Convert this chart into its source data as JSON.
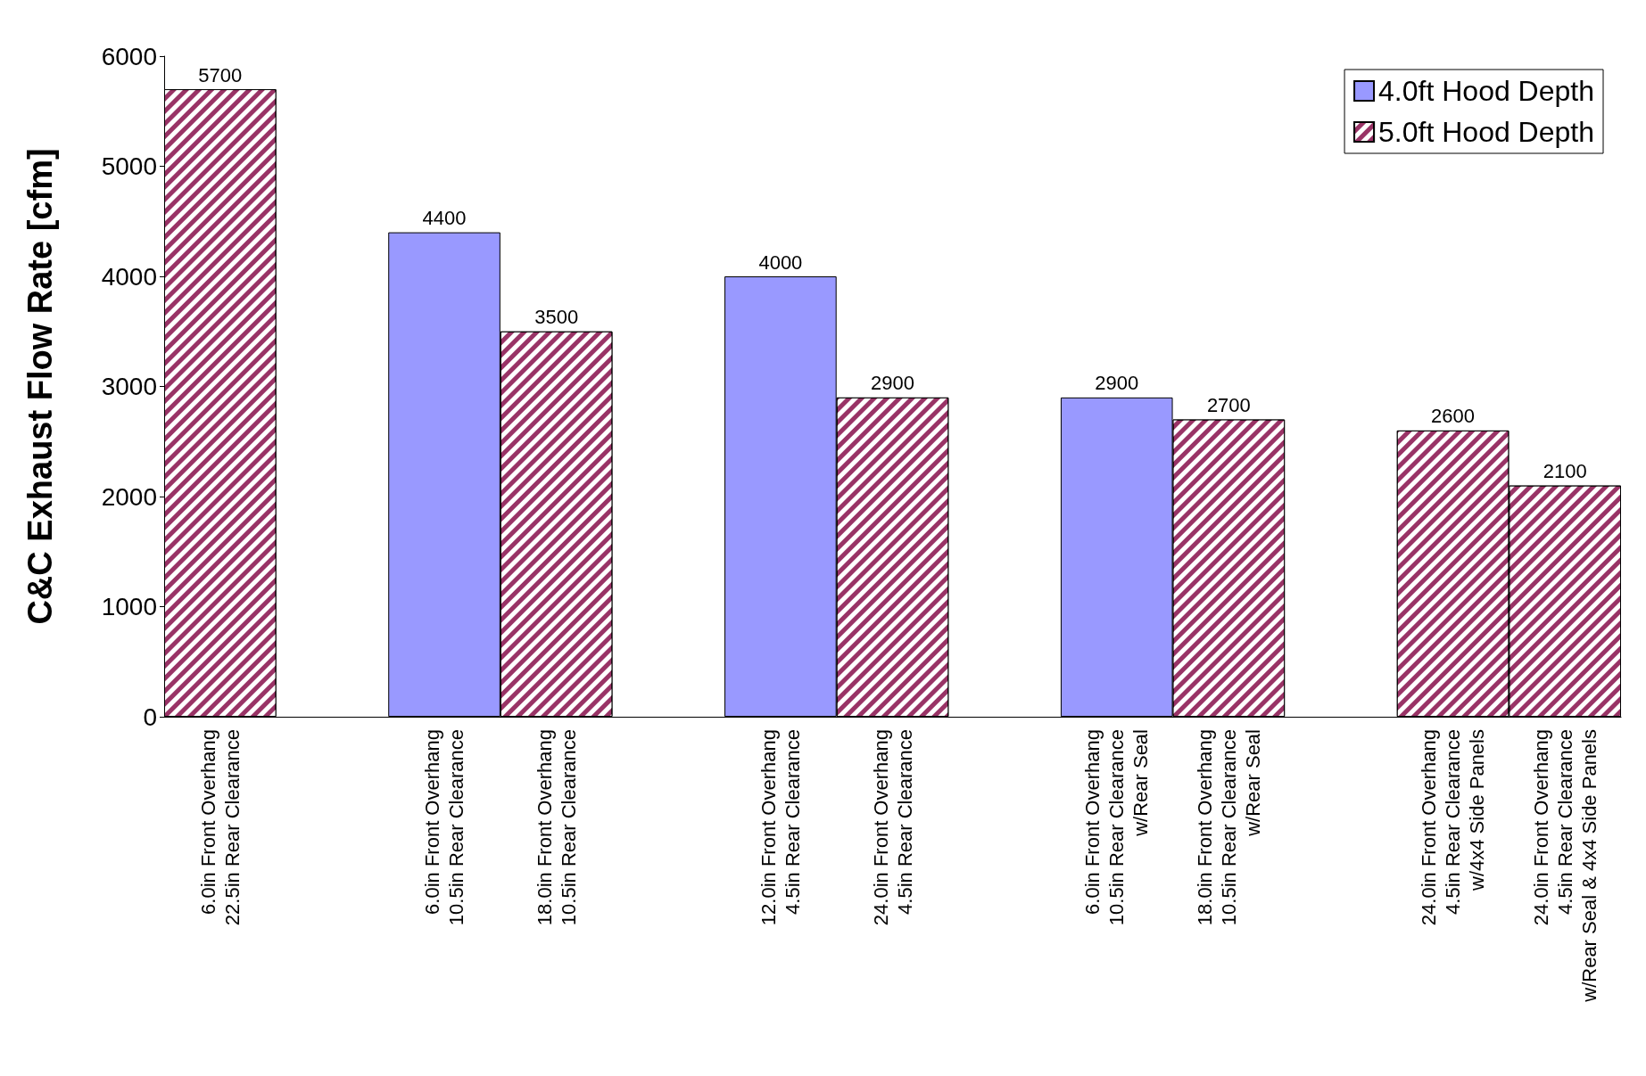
{
  "chart_data": {
    "type": "bar",
    "ylabel": "C&C Exhaust Flow Rate [cfm]",
    "categories": [
      "6.0in Front Overhang\n22.5in Rear Clearance",
      null,
      "6.0in Front Overhang\n10.5in Rear Clearance",
      "18.0in Front Overhang\n10.5in Rear Clearance",
      null,
      "12.0in Front Overhang\n4.5in Rear Clearance",
      "24.0in Front Overhang\n4.5in Rear Clearance",
      null,
      "6.0in Front Overhang\n10.5in Rear Clearance\nw/Rear Seal",
      "18.0in Front Overhang\n10.5in Rear Clearance\nw/Rear Seal",
      null,
      "24.0in Front Overhang\n4.5in Rear Clearance\nw/4x4 Side Panels",
      "24.0in Front Overhang\n4.5in Rear Clearance\nw/Rear Seal & 4x4 Side Panels"
    ],
    "series": [
      {
        "name": "4.0ft Hood Depth",
        "color": "#9999ff",
        "values": [
          null,
          null,
          4400,
          null,
          null,
          4000,
          null,
          null,
          2900,
          null,
          null,
          null,
          null
        ]
      },
      {
        "name": "5.0ft Hood Depth",
        "color": "#993366",
        "values": [
          5700,
          null,
          null,
          3500,
          null,
          null,
          2900,
          null,
          null,
          2700,
          null,
          2600,
          2100
        ]
      }
    ],
    "ylim": [
      0,
      6000
    ],
    "yticks": [
      0,
      1000,
      2000,
      3000,
      4000,
      5000,
      6000
    ],
    "grid": false,
    "legend": "top right",
    "data_labels": true
  }
}
